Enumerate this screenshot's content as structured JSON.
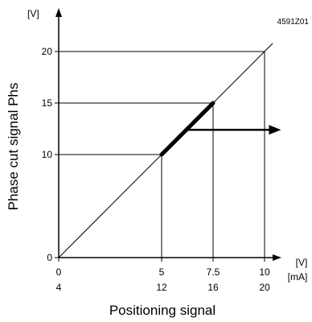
{
  "figure_code": "4591Z01",
  "chart_data": {
    "type": "line",
    "xlabel": "Positioning signal",
    "ylabel": "Phase cut signal Phs",
    "y_unit": "[V]",
    "x_units": [
      "[V]",
      "[mA]"
    ],
    "xlim": [
      0,
      10.8
    ],
    "ylim": [
      0,
      21.5
    ],
    "x_ticks": [
      {
        "v": 0,
        "label": "0",
        "label_ma": "4"
      },
      {
        "v": 5,
        "label": "5",
        "label_ma": "12"
      },
      {
        "v": 7.5,
        "label": "7.5",
        "label_ma": "16"
      },
      {
        "v": 10,
        "label": "10",
        "label_ma": "20"
      }
    ],
    "y_ticks": [
      {
        "v": 0,
        "label": "0"
      },
      {
        "v": 10,
        "label": "10"
      },
      {
        "v": 15,
        "label": "15"
      },
      {
        "v": 20,
        "label": "20"
      }
    ],
    "series": [
      {
        "role": "diagonal",
        "x": [
          0,
          10.4
        ],
        "y": [
          0,
          20.8
        ]
      },
      {
        "role": "operating-range",
        "x": [
          5,
          7.5
        ],
        "y": [
          10,
          15
        ]
      }
    ],
    "arrow": {
      "from": [
        6.2,
        12.4
      ],
      "to": [
        10.8,
        12.4
      ]
    },
    "guides": [
      {
        "x": 5,
        "y": 10
      },
      {
        "x": 7.5,
        "y": 15
      },
      {
        "x": 10,
        "y": 20
      }
    ],
    "grid": false,
    "legend": "none"
  }
}
